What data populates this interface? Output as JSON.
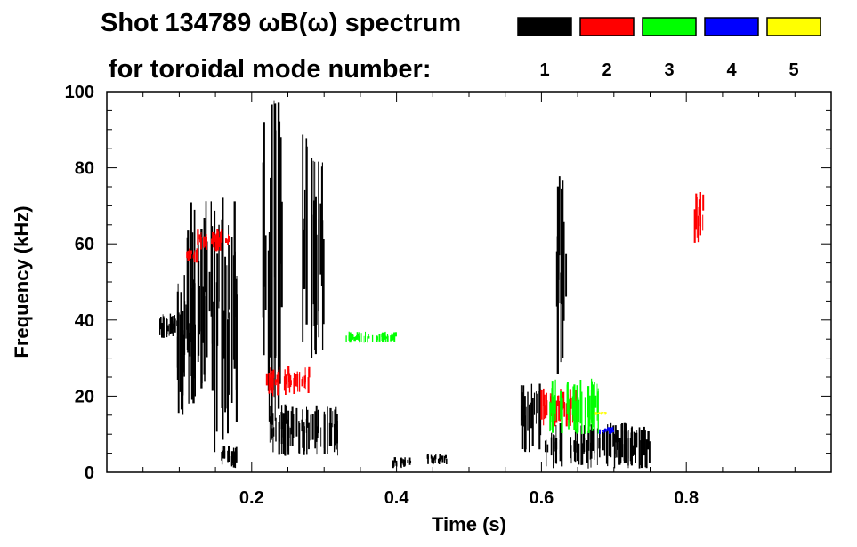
{
  "chart_data": {
    "type": "scatter",
    "title_line1": "Shot 134789 ωB(ω) spectrum",
    "title_line2": "for toroidal mode number:",
    "xlabel": "Time (s)",
    "ylabel": "Frequency (kHz)",
    "xlim": [
      0.0,
      1.0
    ],
    "ylim": [
      0,
      100
    ],
    "x_ticks": [
      0.2,
      0.4,
      0.6,
      0.8
    ],
    "x_tick_labels": [
      "0.2",
      "0.4",
      "0.6",
      "0.8"
    ],
    "y_ticks": [
      0,
      20,
      40,
      60,
      80,
      100
    ],
    "y_tick_labels": [
      "0",
      "20",
      "40",
      "60",
      "80",
      "100"
    ],
    "legend": [
      {
        "label": "1",
        "color": "#000000"
      },
      {
        "label": "2",
        "color": "#ff0000"
      },
      {
        "label": "3",
        "color": "#00ff00"
      },
      {
        "label": "4",
        "color": "#0000ff"
      },
      {
        "label": "5",
        "color": "#ffff00"
      }
    ],
    "series": [
      {
        "name": "n=1",
        "color": "#000000",
        "regions": [
          {
            "x": [
              0.07,
              0.1
            ],
            "y": [
              35,
              42
            ]
          },
          {
            "x": [
              0.095,
              0.13
            ],
            "y": [
              15,
              52
            ]
          },
          {
            "x": [
              0.11,
              0.145
            ],
            "y": [
              20,
              72
            ]
          },
          {
            "x": [
              0.145,
              0.18
            ],
            "y": [
              5,
              74
            ]
          },
          {
            "x": [
              0.155,
              0.18
            ],
            "y": [
              1,
              7
            ]
          },
          {
            "x": [
              0.215,
              0.245
            ],
            "y": [
              10,
              98
            ]
          },
          {
            "x": [
              0.225,
              0.32
            ],
            "y": [
              4,
              18
            ]
          },
          {
            "x": [
              0.27,
              0.3
            ],
            "y": [
              30,
              90
            ]
          },
          {
            "x": [
              0.395,
              0.42
            ],
            "y": [
              1,
              4
            ]
          },
          {
            "x": [
              0.44,
              0.47
            ],
            "y": [
              2,
              5
            ]
          },
          {
            "x": [
              0.57,
              0.6
            ],
            "y": [
              5,
              24
            ]
          },
          {
            "x": [
              0.6,
              0.75
            ],
            "y": [
              1,
              13
            ]
          },
          {
            "x": [
              0.62,
              0.635
            ],
            "y": [
              25,
              78
            ]
          }
        ]
      },
      {
        "name": "n=2",
        "color": "#ff0000",
        "regions": [
          {
            "x": [
              0.11,
              0.125
            ],
            "y": [
              55,
              59
            ]
          },
          {
            "x": [
              0.125,
              0.17
            ],
            "y": [
              58,
              64
            ]
          },
          {
            "x": [
              0.22,
              0.28
            ],
            "y": [
              20,
              28
            ]
          },
          {
            "x": [
              0.6,
              0.65
            ],
            "y": [
              12,
              22
            ]
          },
          {
            "x": [
              0.81,
              0.825
            ],
            "y": [
              60,
              74
            ]
          }
        ]
      },
      {
        "name": "n=3",
        "color": "#00ff00",
        "regions": [
          {
            "x": [
              0.33,
              0.4
            ],
            "y": [
              34,
              37
            ]
          },
          {
            "x": [
              0.61,
              0.68
            ],
            "y": [
              10,
              25
            ]
          }
        ]
      },
      {
        "name": "n=4",
        "color": "#0000ff",
        "regions": [
          {
            "x": [
              0.68,
              0.7
            ],
            "y": [
              10,
              12
            ]
          }
        ]
      },
      {
        "name": "n=5",
        "color": "#ffff00",
        "regions": [
          {
            "x": [
              0.675,
              0.69
            ],
            "y": [
              15,
              16
            ]
          }
        ]
      }
    ]
  }
}
